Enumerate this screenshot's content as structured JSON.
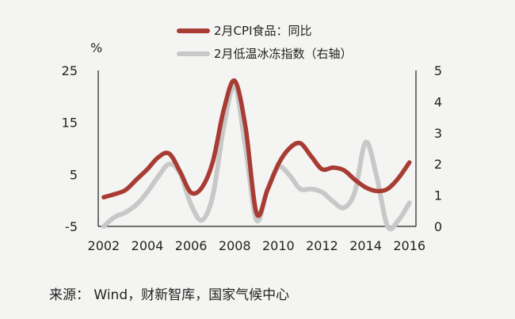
{
  "chart_data": {
    "type": "line",
    "x": [
      2002,
      2002.5,
      2003,
      2003.5,
      2004,
      2004.5,
      2005,
      2005.5,
      2006,
      2006.5,
      2007,
      2007.5,
      2008,
      2008.5,
      2009,
      2009.5,
      2010,
      2010.5,
      2011,
      2011.5,
      2012,
      2012.5,
      2013,
      2013.5,
      2014,
      2014.5,
      2015,
      2015.5,
      2016
    ],
    "x_ticks": [
      "2002",
      "2004",
      "2006",
      "2008",
      "2010",
      "2012",
      "2014",
      "2016"
    ],
    "xlim": [
      2001.75,
      2016.3
    ],
    "y_left_ticks": [
      "25",
      "15",
      "5",
      "-5"
    ],
    "y_left_lim": [
      -5,
      25
    ],
    "y_right_ticks": [
      "5",
      "4",
      "3",
      "2",
      "1",
      "0"
    ],
    "y_right_lim": [
      0,
      5
    ],
    "left_unit": "%",
    "series": [
      {
        "name": "2月CPI食品：同比",
        "axis": "left",
        "color": "#a83c34",
        "values": [
          0.6,
          1.2,
          2.0,
          4.0,
          6.0,
          8.3,
          9.0,
          5.5,
          1.5,
          2.5,
          7.5,
          17.5,
          23.0,
          14.0,
          -2.5,
          2.0,
          7.0,
          10.0,
          11.0,
          8.5,
          6.0,
          6.3,
          5.8,
          4.0,
          2.5,
          1.8,
          2.2,
          4.3,
          7.3
        ]
      },
      {
        "name": "2月低温冰冻指数（右轴）",
        "axis": "right",
        "color": "#c8c8c8",
        "values": [
          0.0,
          0.3,
          0.45,
          0.7,
          1.1,
          1.6,
          2.0,
          1.7,
          0.7,
          0.2,
          1.0,
          3.2,
          4.5,
          2.5,
          0.2,
          1.2,
          1.9,
          1.65,
          1.2,
          1.2,
          1.1,
          0.8,
          0.6,
          1.1,
          2.7,
          1.6,
          0.0,
          0.2,
          0.75
        ]
      }
    ]
  },
  "source_text": "来源：  Wind，财新智库，国家气候中心"
}
